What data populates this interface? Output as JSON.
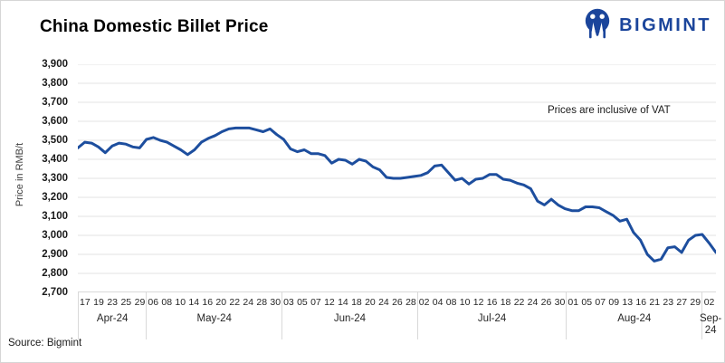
{
  "page": {
    "title": "China Domestic Billet Price",
    "annotation": "Prices are inclusive of VAT",
    "source": "Source: Bigmint"
  },
  "logo": {
    "text": "BIGMINT"
  },
  "colors": {
    "line": "#1d4e9e",
    "logo": "#1b459b",
    "grid": "#e3e3e3",
    "axis_line": "#b3b3b3",
    "separator": "#d9d9d9"
  },
  "chart_data": {
    "type": "line",
    "title": "China Domestic Billet Price",
    "ylabel": "Price in RMB/t",
    "ylim": [
      2700,
      3900
    ],
    "ytick_step": 100,
    "grid": true,
    "legend_position": "none",
    "annotation": "Prices are inclusive of VAT",
    "x_groups": [
      {
        "label": "Apr-24",
        "ticks": [
          "17",
          "19",
          "23",
          "25",
          "29"
        ],
        "points": 10
      },
      {
        "label": "May-24",
        "ticks": [
          "06",
          "08",
          "10",
          "14",
          "16",
          "20",
          "22",
          "24",
          "28",
          "30"
        ],
        "points": 20
      },
      {
        "label": "Jun-24",
        "ticks": [
          "03",
          "05",
          "07",
          "12",
          "14",
          "18",
          "20",
          "24",
          "26",
          "28"
        ],
        "points": 20
      },
      {
        "label": "Jul-24",
        "ticks": [
          "02",
          "04",
          "08",
          "10",
          "12",
          "16",
          "18",
          "22",
          "24",
          "26",
          "30"
        ],
        "points": 22
      },
      {
        "label": "Aug-24",
        "ticks": [
          "01",
          "05",
          "07",
          "09",
          "13",
          "16",
          "21",
          "23",
          "27",
          "29"
        ],
        "points": 20
      },
      {
        "label": "Sep-24",
        "ticks": [
          "02"
        ],
        "points": 2
      }
    ],
    "series": [
      {
        "name": "China Domestic Billet Price",
        "color": "#1d4e9e",
        "values": [
          3460,
          3490,
          3485,
          3465,
          3435,
          3470,
          3485,
          3480,
          3465,
          3460,
          3505,
          3515,
          3500,
          3490,
          3470,
          3450,
          3425,
          3450,
          3490,
          3510,
          3525,
          3545,
          3560,
          3565,
          3565,
          3565,
          3555,
          3545,
          3560,
          3530,
          3505,
          3455,
          3440,
          3450,
          3430,
          3430,
          3420,
          3380,
          3400,
          3395,
          3375,
          3400,
          3390,
          3360,
          3345,
          3305,
          3300,
          3300,
          3305,
          3310,
          3315,
          3330,
          3365,
          3370,
          3330,
          3290,
          3300,
          3270,
          3295,
          3300,
          3320,
          3320,
          3295,
          3290,
          3275,
          3265,
          3245,
          3180,
          3160,
          3190,
          3160,
          3140,
          3130,
          3130,
          3150,
          3150,
          3145,
          3125,
          3105,
          3075,
          3085,
          3015,
          2975,
          2900,
          2865,
          2875,
          2935,
          2940,
          2910,
          2975,
          3000,
          3005,
          2960,
          2910
        ]
      }
    ]
  }
}
